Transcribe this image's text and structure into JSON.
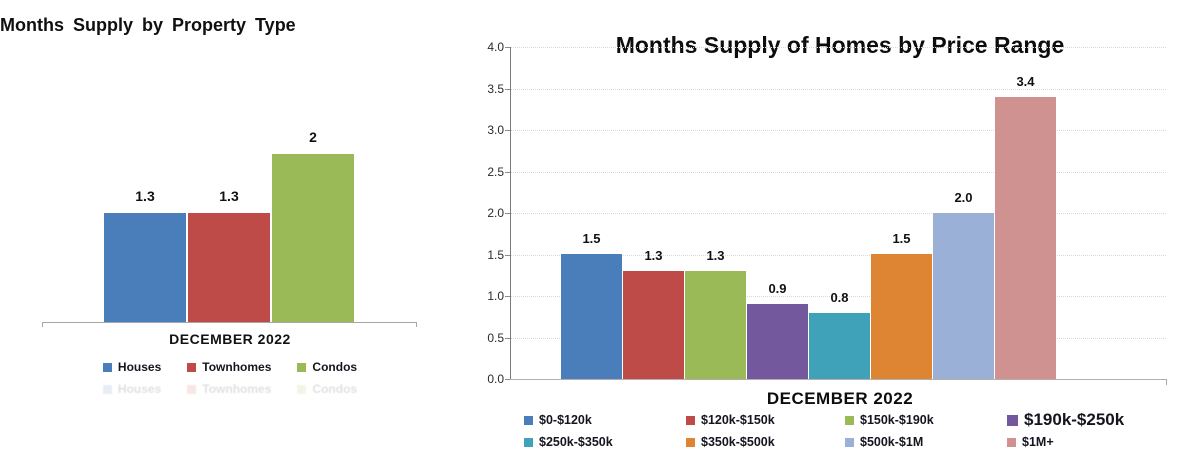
{
  "page": {
    "background": "#ffffff"
  },
  "palette": {
    "grid_line": "#d9d9d9",
    "y_axis_line": "#7a7a7a",
    "x_baseline": "#b4aeae",
    "left_axis_line": "#a6a6a6",
    "text": "#1a1a1a",
    "legend_text": "#15151f"
  },
  "chart_data": [
    {
      "type": "bar",
      "title": "Months Supply by Property Type",
      "xlabel": "DECEMBER 2022",
      "categories": [
        "Houses",
        "Townhomes",
        "Condos"
      ],
      "values": [
        1.3,
        1.3,
        2
      ],
      "value_labels": [
        "1.3",
        "1.3",
        "2"
      ],
      "colors": [
        "#4A7EBB",
        "#BE4B48",
        "#9ABA58"
      ],
      "ylim": [
        0,
        2.4
      ],
      "grid": false,
      "y_axis_visible": false,
      "legend_position": "bottom"
    },
    {
      "type": "bar",
      "title": "Months Supply of Homes by Price Range",
      "xlabel": "DECEMBER 2022",
      "categories": [
        "$0-$120k",
        "$120k-$150k",
        "$150k-$190k",
        "$190k-$250k",
        "$250k-$350k",
        "$350k-$500k",
        "$500k-$1M",
        "$1M+"
      ],
      "values": [
        1.5,
        1.3,
        1.3,
        0.9,
        0.8,
        1.5,
        2.0,
        3.4
      ],
      "value_labels": [
        "1.5",
        "1.3",
        "1.3",
        "0.9",
        "0.8",
        "1.5",
        "2.0",
        "3.4"
      ],
      "colors": [
        "#4A7EBB",
        "#BE4B48",
        "#9ABA58",
        "#73589D",
        "#3FA2B8",
        "#DE8533",
        "#9BB0D6",
        "#CF9291"
      ],
      "ylim": [
        0,
        4.0
      ],
      "ytick_labels": [
        "0.0",
        "0.5",
        "1.0",
        "1.5",
        "2.0",
        "2.5",
        "3.0",
        "3.5",
        "4.0"
      ],
      "grid": true,
      "grid_style": "dotted",
      "legend_position": "bottom",
      "legend_rows": 2
    }
  ]
}
